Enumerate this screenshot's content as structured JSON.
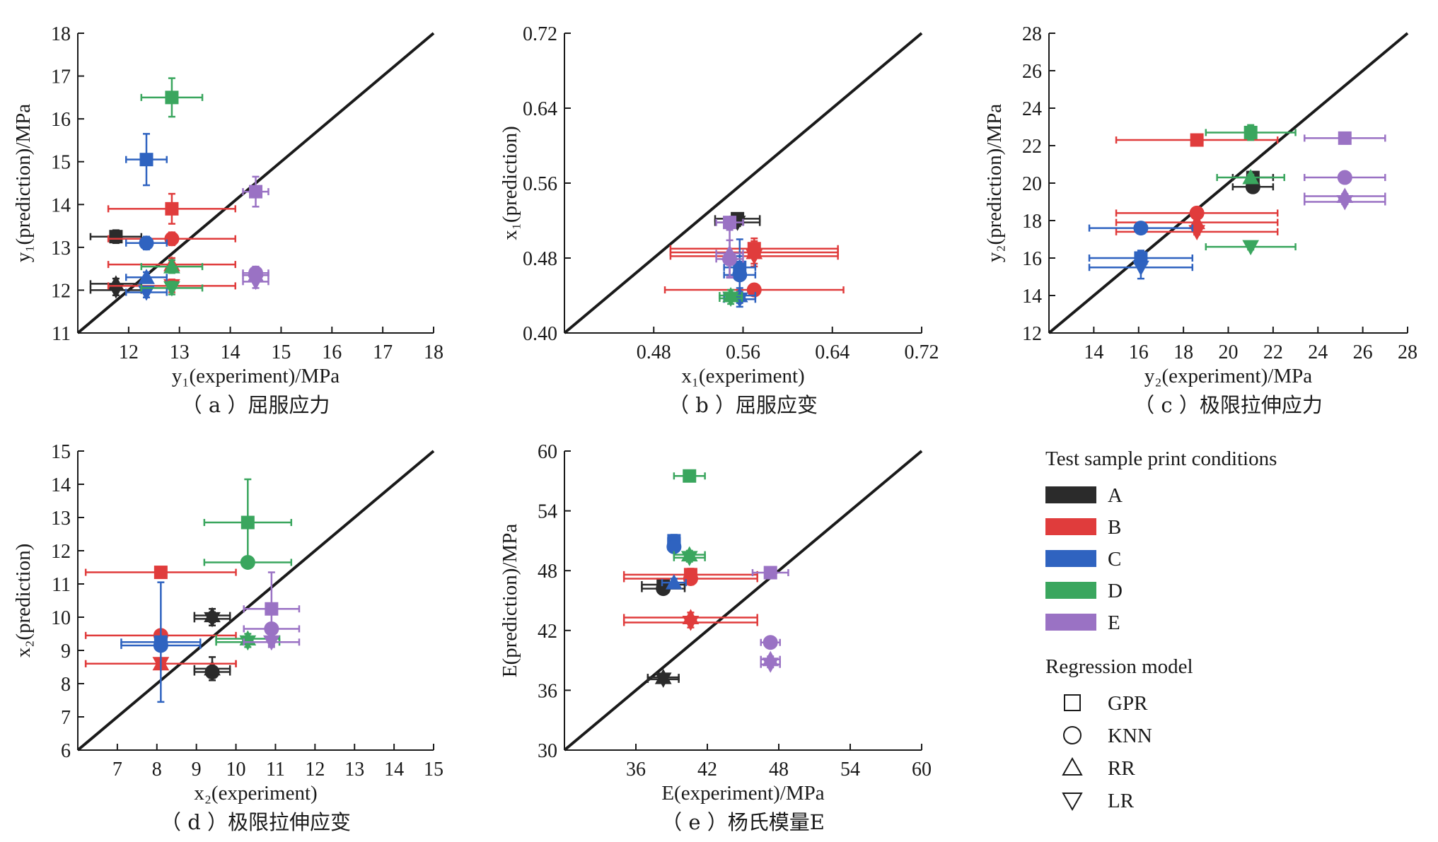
{
  "colors": {
    "A": "#2b2b2b",
    "B": "#e03c3c",
    "C": "#2f63c0",
    "D": "#3aa65e",
    "E": "#9a72c4"
  },
  "legend": {
    "conditions_title": "Test sample print conditions",
    "conditions": [
      {
        "key": "A",
        "label": "A"
      },
      {
        "key": "B",
        "label": "B"
      },
      {
        "key": "C",
        "label": "C"
      },
      {
        "key": "D",
        "label": "D"
      },
      {
        "key": "E",
        "label": "E"
      }
    ],
    "models_title": "Regression model",
    "models": [
      {
        "marker": "square",
        "label": "GPR"
      },
      {
        "marker": "circle",
        "label": "KNN"
      },
      {
        "marker": "triangle-up",
        "label": "RR"
      },
      {
        "marker": "triangle-down",
        "label": "LR"
      }
    ]
  },
  "chart_data": [
    {
      "type": "scatter",
      "panel": "a",
      "caption": "（ a ）屈服应力",
      "xlabel": "y₁(experiment)/MPa",
      "ylabel": "y₁(prediction)/MPa",
      "xlim": [
        11,
        18
      ],
      "ylim": [
        11,
        18
      ],
      "xticks": [
        "12",
        "13",
        "14",
        "15",
        "16",
        "17",
        "18"
      ],
      "yticks": [
        "11",
        "12",
        "13",
        "14",
        "15",
        "16",
        "17",
        "18"
      ],
      "points": [
        {
          "c": "A",
          "m": "square",
          "x": 11.75,
          "y": 13.25,
          "xe": 0.5,
          "ye": 0.15
        },
        {
          "c": "A",
          "m": "triangle-up",
          "x": 11.75,
          "y": 12.15,
          "xe": 0.5,
          "ye": 0.12
        },
        {
          "c": "A",
          "m": "triangle-down",
          "x": 11.75,
          "y": 12.0,
          "xe": 0.5,
          "ye": 0.12
        },
        {
          "c": "B",
          "m": "square",
          "x": 12.85,
          "y": 13.9,
          "xe": 1.25,
          "ye": 0.35
        },
        {
          "c": "B",
          "m": "circle",
          "x": 12.85,
          "y": 13.2,
          "xe": 1.25,
          "ye": 0.15
        },
        {
          "c": "B",
          "m": "triangle-up",
          "x": 12.85,
          "y": 12.6,
          "xe": 1.25,
          "ye": 0.15
        },
        {
          "c": "B",
          "m": "triangle-down",
          "x": 12.85,
          "y": 12.1,
          "xe": 1.25,
          "ye": 0.15
        },
        {
          "c": "C",
          "m": "square",
          "x": 12.35,
          "y": 15.05,
          "xe": 0.4,
          "ye": 0.6
        },
        {
          "c": "C",
          "m": "circle",
          "x": 12.35,
          "y": 13.1,
          "xe": 0.4,
          "ye": 0.15
        },
        {
          "c": "C",
          "m": "triangle-up",
          "x": 12.35,
          "y": 12.3,
          "xe": 0.4,
          "ye": 0.12
        },
        {
          "c": "C",
          "m": "triangle-down",
          "x": 12.35,
          "y": 11.95,
          "xe": 0.4,
          "ye": 0.12
        },
        {
          "c": "D",
          "m": "square",
          "x": 12.85,
          "y": 16.5,
          "xe": 0.6,
          "ye": 0.45
        },
        {
          "c": "D",
          "m": "triangle-up",
          "x": 12.85,
          "y": 12.55,
          "xe": 0.6,
          "ye": 0.15
        },
        {
          "c": "D",
          "m": "triangle-down",
          "x": 12.85,
          "y": 12.05,
          "xe": 0.6,
          "ye": 0.15
        },
        {
          "c": "E",
          "m": "square",
          "x": 14.5,
          "y": 14.3,
          "xe": 0.25,
          "ye": 0.35
        },
        {
          "c": "E",
          "m": "circle",
          "x": 14.5,
          "y": 12.4,
          "xe": 0.25,
          "ye": 0.15
        },
        {
          "c": "E",
          "m": "triangle-up",
          "x": 14.5,
          "y": 12.35,
          "xe": 0.25,
          "ye": 0.15
        },
        {
          "c": "E",
          "m": "triangle-down",
          "x": 14.5,
          "y": 12.2,
          "xe": 0.25,
          "ye": 0.15
        }
      ]
    },
    {
      "type": "scatter",
      "panel": "b",
      "caption": "（ b ）屈服应变",
      "xlabel": "x₁(experiment)",
      "ylabel": "x₁(prediction)",
      "xlim": [
        0.4,
        0.72
      ],
      "ylim": [
        0.4,
        0.72
      ],
      "xticks": [
        "0.48",
        "0.56",
        "0.64",
        "0.72"
      ],
      "yticks": [
        "0.40",
        "0.48",
        "0.56",
        "0.64",
        "0.72"
      ],
      "points": [
        {
          "c": "A",
          "m": "square",
          "x": 0.555,
          "y": 0.522,
          "xe": 0.02,
          "ye": 0.004
        },
        {
          "c": "A",
          "m": "triangle-down",
          "x": 0.555,
          "y": 0.518,
          "xe": 0.02,
          "ye": 0.004
        },
        {
          "c": "B",
          "m": "square",
          "x": 0.57,
          "y": 0.49,
          "xe": 0.075,
          "ye": 0.008
        },
        {
          "c": "B",
          "m": "triangle-up",
          "x": 0.57,
          "y": 0.486,
          "xe": 0.075,
          "ye": 0.015
        },
        {
          "c": "B",
          "m": "triangle-down",
          "x": 0.57,
          "y": 0.482,
          "xe": 0.075,
          "ye": 0.008
        },
        {
          "c": "B",
          "m": "circle",
          "x": 0.57,
          "y": 0.446,
          "xe": 0.08,
          "ye": 0.004
        },
        {
          "c": "C",
          "m": "square",
          "x": 0.557,
          "y": 0.47,
          "xe": 0.014,
          "ye": 0.03
        },
        {
          "c": "C",
          "m": "circle",
          "x": 0.557,
          "y": 0.462,
          "xe": 0.014,
          "ye": 0.02
        },
        {
          "c": "C",
          "m": "triangle-up",
          "x": 0.557,
          "y": 0.44,
          "xe": 0.014,
          "ye": 0.008
        },
        {
          "c": "C",
          "m": "triangle-down",
          "x": 0.557,
          "y": 0.436,
          "xe": 0.014,
          "ye": 0.008
        },
        {
          "c": "D",
          "m": "triangle-up",
          "x": 0.549,
          "y": 0.44,
          "xe": 0.01,
          "ye": 0.006
        },
        {
          "c": "D",
          "m": "triangle-down",
          "x": 0.549,
          "y": 0.437,
          "xe": 0.01,
          "ye": 0.006
        },
        {
          "c": "E",
          "m": "square",
          "x": 0.548,
          "y": 0.518,
          "xe": 0.012,
          "ye": 0.006
        },
        {
          "c": "E",
          "m": "triangle-up",
          "x": 0.548,
          "y": 0.485,
          "xe": 0.012,
          "ye": 0.025
        },
        {
          "c": "E",
          "m": "circle",
          "x": 0.548,
          "y": 0.479,
          "xe": 0.012,
          "ye": 0.02
        }
      ]
    },
    {
      "type": "scatter",
      "panel": "c",
      "caption": "（ c ）极限拉伸应力",
      "xlabel": "y₂(experiment)/MPa",
      "ylabel": "y₂(prediction)/MPa",
      "xlim": [
        12,
        28
      ],
      "ylim": [
        12,
        28
      ],
      "xticks": [
        "14",
        "16",
        "18",
        "20",
        "22",
        "24",
        "26",
        "28"
      ],
      "yticks": [
        "12",
        "14",
        "16",
        "18",
        "20",
        "22",
        "24",
        "26",
        "28"
      ],
      "points": [
        {
          "c": "A",
          "m": "square",
          "x": 21.1,
          "y": 20.3,
          "xe": 0.9,
          "ye": 0.15
        },
        {
          "c": "A",
          "m": "circle",
          "x": 21.1,
          "y": 19.8,
          "xe": 0.9,
          "ye": 0.15
        },
        {
          "c": "B",
          "m": "square",
          "x": 18.6,
          "y": 22.3,
          "xe": 3.6,
          "ye": 0.3
        },
        {
          "c": "B",
          "m": "circle",
          "x": 18.6,
          "y": 18.4,
          "xe": 3.6,
          "ye": 0.15
        },
        {
          "c": "B",
          "m": "triangle-up",
          "x": 18.6,
          "y": 17.9,
          "xe": 3.6,
          "ye": 0.15
        },
        {
          "c": "B",
          "m": "triangle-down",
          "x": 18.6,
          "y": 17.4,
          "xe": 3.6,
          "ye": 0.15
        },
        {
          "c": "C",
          "m": "circle",
          "x": 16.1,
          "y": 17.6,
          "xe": 2.3,
          "ye": 0.12
        },
        {
          "c": "C",
          "m": "square",
          "x": 16.1,
          "y": 16.0,
          "xe": 2.3,
          "ye": 0.4
        },
        {
          "c": "C",
          "m": "triangle-down",
          "x": 16.1,
          "y": 15.5,
          "xe": 2.3,
          "ye": 0.6
        },
        {
          "c": "D",
          "m": "square",
          "x": 21.0,
          "y": 22.7,
          "xe": 2.0,
          "ye": 0.4
        },
        {
          "c": "D",
          "m": "triangle-up",
          "x": 21.0,
          "y": 20.3,
          "xe": 1.5,
          "ye": 0.15
        },
        {
          "c": "D",
          "m": "triangle-down",
          "x": 21.0,
          "y": 16.6,
          "xe": 2.0,
          "ye": 0.15
        },
        {
          "c": "E",
          "m": "square",
          "x": 25.2,
          "y": 22.4,
          "xe": 1.8,
          "ye": 0.3
        },
        {
          "c": "E",
          "m": "circle",
          "x": 25.2,
          "y": 20.3,
          "xe": 1.8,
          "ye": 0.12
        },
        {
          "c": "E",
          "m": "triangle-up",
          "x": 25.2,
          "y": 19.3,
          "xe": 1.8,
          "ye": 0.12
        },
        {
          "c": "E",
          "m": "triangle-down",
          "x": 25.2,
          "y": 19.0,
          "xe": 1.8,
          "ye": 0.12
        }
      ]
    },
    {
      "type": "scatter",
      "panel": "d",
      "caption": "（ d ）极限拉伸应变",
      "xlabel": "x₂(experiment)",
      "ylabel": "x₂(prediction)",
      "xlim": [
        6,
        15
      ],
      "ylim": [
        6,
        15
      ],
      "xticks": [
        "7",
        "8",
        "9",
        "10",
        "11",
        "12",
        "13",
        "14",
        "15"
      ],
      "yticks": [
        "6",
        "7",
        "8",
        "9",
        "10",
        "11",
        "12",
        "13",
        "14",
        "15"
      ],
      "points": [
        {
          "c": "A",
          "m": "triangle-up",
          "x": 9.4,
          "y": 10.05,
          "xe": 0.45,
          "ye": 0.2
        },
        {
          "c": "A",
          "m": "triangle-down",
          "x": 9.4,
          "y": 9.95,
          "xe": 0.45,
          "ye": 0.2
        },
        {
          "c": "A",
          "m": "circle",
          "x": 9.4,
          "y": 8.35,
          "xe": 0.45,
          "ye": 0.15
        },
        {
          "c": "A",
          "m": "triangle-up",
          "x": 9.4,
          "y": 8.45,
          "xe": 0.45,
          "ye": 0.35
        },
        {
          "c": "B",
          "m": "square",
          "x": 8.1,
          "y": 11.35,
          "xe": 1.9,
          "ye": 0.12
        },
        {
          "c": "B",
          "m": "circle",
          "x": 8.1,
          "y": 9.45,
          "xe": 1.9,
          "ye": 0.12
        },
        {
          "c": "B",
          "m": "triangle-up",
          "x": 8.1,
          "y": 8.6,
          "xe": 1.9,
          "ye": 0.12
        },
        {
          "c": "B",
          "m": "triangle-down",
          "x": 8.1,
          "y": 8.6,
          "xe": 1.9,
          "ye": 0.12
        },
        {
          "c": "C",
          "m": "square",
          "x": 8.1,
          "y": 9.25,
          "xe": 1.0,
          "ye": 1.8
        },
        {
          "c": "C",
          "m": "circle",
          "x": 8.1,
          "y": 9.15,
          "xe": 1.0,
          "ye": 0.15
        },
        {
          "c": "D",
          "m": "square",
          "x": 10.3,
          "y": 12.85,
          "xe": 1.1,
          "ye": 1.3
        },
        {
          "c": "D",
          "m": "circle",
          "x": 10.3,
          "y": 11.65,
          "xe": 1.1,
          "ye": 0.15
        },
        {
          "c": "D",
          "m": "triangle-up",
          "x": 10.3,
          "y": 9.35,
          "xe": 0.8,
          "ye": 0.15
        },
        {
          "c": "D",
          "m": "triangle-down",
          "x": 10.3,
          "y": 9.25,
          "xe": 0.8,
          "ye": 0.15
        },
        {
          "c": "E",
          "m": "square",
          "x": 10.9,
          "y": 10.25,
          "xe": 0.7,
          "ye": 1.1
        },
        {
          "c": "E",
          "m": "circle",
          "x": 10.9,
          "y": 9.65,
          "xe": 0.7,
          "ye": 0.15
        },
        {
          "c": "E",
          "m": "triangle-down",
          "x": 10.9,
          "y": 9.25,
          "xe": 0.7,
          "ye": 0.15
        }
      ]
    },
    {
      "type": "scatter",
      "panel": "e",
      "caption": "（ e ）杨氏模量E",
      "xlabel": "E(experiment)/MPa",
      "ylabel": "E(prediction)/MPa",
      "xlim": [
        30,
        60
      ],
      "ylim": [
        30,
        60
      ],
      "xticks": [
        "36",
        "42",
        "48",
        "54",
        "60"
      ],
      "yticks": [
        "30",
        "36",
        "42",
        "48",
        "54",
        "60"
      ],
      "points": [
        {
          "c": "A",
          "m": "square",
          "x": 38.3,
          "y": 46.6,
          "xe": 1.8,
          "ye": 0.4
        },
        {
          "c": "A",
          "m": "circle",
          "x": 38.3,
          "y": 46.2,
          "xe": 1.8,
          "ye": 0.4
        },
        {
          "c": "A",
          "m": "triangle-up",
          "x": 38.3,
          "y": 37.3,
          "xe": 1.3,
          "ye": 0.3
        },
        {
          "c": "A",
          "m": "triangle-down",
          "x": 38.3,
          "y": 37.1,
          "xe": 1.3,
          "ye": 0.3
        },
        {
          "c": "B",
          "m": "square",
          "x": 40.6,
          "y": 47.6,
          "xe": 5.6,
          "ye": 0.6
        },
        {
          "c": "B",
          "m": "circle",
          "x": 40.6,
          "y": 47.2,
          "xe": 5.6,
          "ye": 0.6
        },
        {
          "c": "B",
          "m": "triangle-up",
          "x": 40.6,
          "y": 43.3,
          "xe": 5.6,
          "ye": 0.5
        },
        {
          "c": "B",
          "m": "triangle-down",
          "x": 40.6,
          "y": 42.8,
          "xe": 5.6,
          "ye": 0.5
        },
        {
          "c": "C",
          "m": "square",
          "x": 39.2,
          "y": 51.0,
          "xe": 0.5,
          "ye": 0.6
        },
        {
          "c": "C",
          "m": "circle",
          "x": 39.2,
          "y": 50.4,
          "xe": 0.5,
          "ye": 0.4
        },
        {
          "c": "C",
          "m": "triangle-up",
          "x": 39.2,
          "y": 46.8,
          "xe": 1.0,
          "ye": 0.4
        },
        {
          "c": "D",
          "m": "square",
          "x": 40.5,
          "y": 57.5,
          "xe": 1.3,
          "ye": 0.4
        },
        {
          "c": "D",
          "m": "triangle-up",
          "x": 40.5,
          "y": 49.6,
          "xe": 1.3,
          "ye": 0.4
        },
        {
          "c": "D",
          "m": "triangle-down",
          "x": 40.5,
          "y": 49.3,
          "xe": 1.3,
          "ye": 0.4
        },
        {
          "c": "E",
          "m": "square",
          "x": 47.3,
          "y": 47.8,
          "xe": 1.5,
          "ye": 0.3
        },
        {
          "c": "E",
          "m": "circle",
          "x": 47.3,
          "y": 40.8,
          "xe": 0.8,
          "ye": 0.3
        },
        {
          "c": "E",
          "m": "triangle-up",
          "x": 47.3,
          "y": 39.1,
          "xe": 0.8,
          "ye": 0.3
        },
        {
          "c": "E",
          "m": "triangle-down",
          "x": 47.3,
          "y": 38.6,
          "xe": 0.8,
          "ye": 0.3
        }
      ]
    }
  ]
}
